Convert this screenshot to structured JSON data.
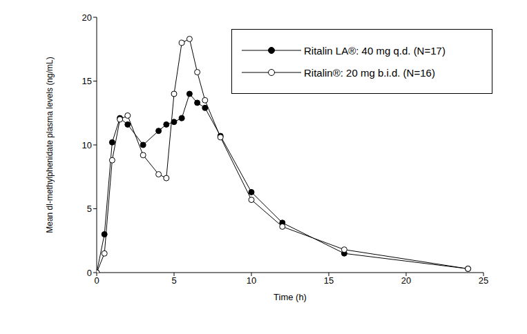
{
  "chart_data": {
    "type": "line",
    "x_label": "Time (h)",
    "y_label": "Mean dl-methylphenidate plasma levels (ng/mL)",
    "x": [
      0,
      0.5,
      1,
      1.5,
      2,
      3,
      4,
      4.5,
      5,
      5.5,
      6,
      6.5,
      7,
      8,
      10,
      12,
      16,
      24
    ],
    "series": [
      {
        "name": "Ritalin LA®: 40 mg q.d. (N=17)",
        "color": "#000000",
        "marker": "circle",
        "values": [
          0,
          3.0,
          10.2,
          12.1,
          11.6,
          10.0,
          11.1,
          11.6,
          11.8,
          12.1,
          14.0,
          13.3,
          12.9,
          10.7,
          6.3,
          3.9,
          1.5,
          0.3
        ]
      },
      {
        "name": "Ritalin®: 20 mg b.i.d. (N=16)",
        "color": "#000000",
        "marker": "open_circle",
        "values": [
          0,
          1.5,
          8.8,
          12.0,
          12.3,
          9.2,
          7.7,
          7.4,
          14.0,
          18.0,
          18.3,
          15.7,
          13.5,
          10.6,
          5.7,
          3.6,
          1.8,
          0.3
        ]
      }
    ],
    "xlim": [
      0,
      25
    ],
    "xticks": [
      0,
      5,
      10,
      15,
      20,
      25
    ],
    "ylim": [
      0,
      20
    ],
    "yticks": [
      0,
      5,
      10,
      15,
      20
    ],
    "grid": false,
    "legend": "upper right"
  }
}
